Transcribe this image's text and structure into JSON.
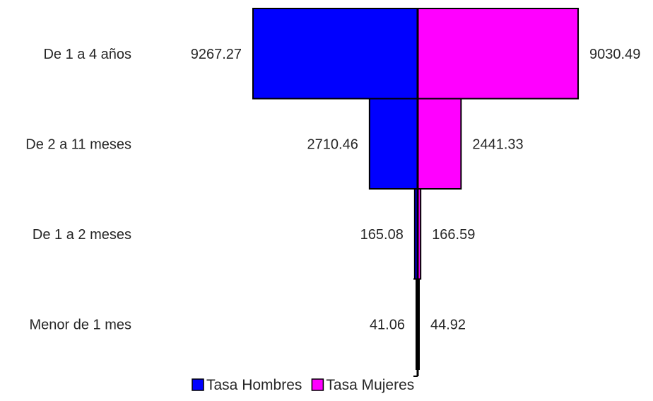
{
  "chart_data": {
    "type": "bar",
    "orientation": "horizontal-pyramid",
    "categories": [
      "De 1 a 4 años",
      "De 2 a 11 meses",
      "De 1 a 2 meses",
      "Menor de 1 mes"
    ],
    "series": [
      {
        "name": "Tasa Hombres",
        "values": [
          9267.27,
          2710.46,
          165.08,
          41.06
        ],
        "color": "#0000ff",
        "side": "left"
      },
      {
        "name": "Tasa Mujeres",
        "values": [
          9030.49,
          2441.33,
          166.59,
          44.92
        ],
        "color": "#ff00ff",
        "side": "right"
      }
    ],
    "value_labels": {
      "Tasa Hombres": [
        "9267.27",
        "2710.46",
        "165.08",
        "41.06"
      ],
      "Tasa Mujeres": [
        "9030.49",
        "2441.33",
        "166.59",
        "44.92"
      ]
    },
    "title": "",
    "xlabel": "",
    "ylabel": "",
    "xlim": [
      -10000,
      10000
    ],
    "grid": false,
    "legend": "bottom"
  }
}
